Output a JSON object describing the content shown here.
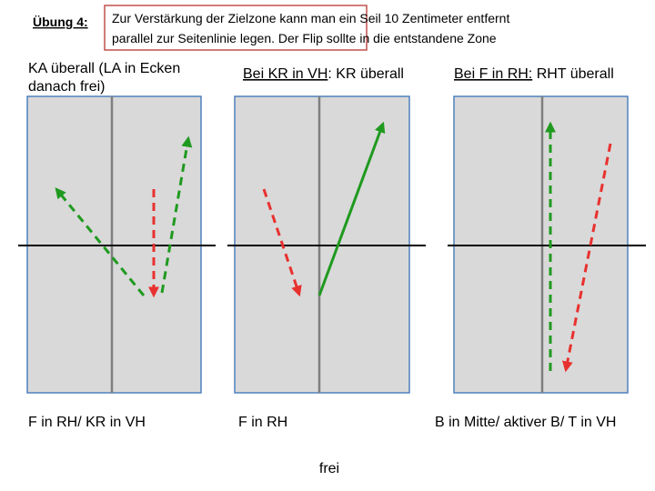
{
  "header": {
    "label": "Übung 4:",
    "note_lines": [
      "Zur Verstärkung der Zielzone kann man ein Seil 10 Zentimeter entfernt",
      "parallel zur Seitenlinie legen. Der Flip sollte in die entstandene Zone"
    ]
  },
  "panels": [
    {
      "title_lines": [
        "KA überall (LA in Ecken",
        "danach frei)"
      ],
      "caption": "F in RH/ KR in VH"
    },
    {
      "title_underlined": "Bei KR in VH",
      "title_rest": ": KR überall",
      "caption": "F in RH"
    },
    {
      "title_underlined": "Bei F in RH:",
      "title_rest": " RHT überall",
      "caption": "B in Mitte/ aktiver B/ T in VH"
    }
  ],
  "footer": "frei"
}
